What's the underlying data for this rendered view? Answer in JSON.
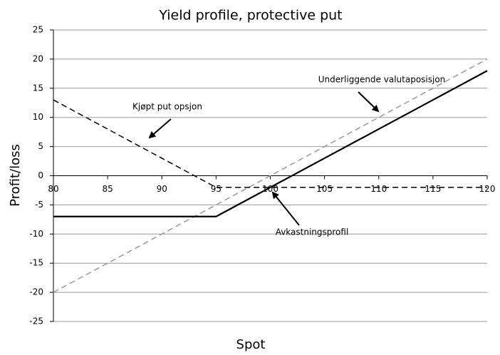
{
  "chart_data": {
    "type": "line",
    "title": "Yield profile, protective put",
    "xlabel": "Spot",
    "ylabel": "Profit/loss",
    "x": [
      80,
      85,
      90,
      95,
      100,
      105,
      110,
      115,
      120
    ],
    "series": [
      {
        "color": "#999999",
        "dash": true,
        "values": [
          -20,
          -15,
          -10,
          -5,
          0,
          5,
          10,
          15,
          20
        ]
      },
      {
        "color": "#000000",
        "dash": true,
        "values": [
          13,
          8,
          3,
          -2,
          -2,
          -2,
          -2,
          -2,
          -2
        ]
      },
      {
        "color": "#000000",
        "dash": false,
        "values": [
          -7,
          -7,
          -7,
          -7,
          -2,
          3,
          8,
          13,
          18
        ]
      }
    ],
    "xlim": [
      80,
      120
    ],
    "xticks": [
      80,
      85,
      90,
      95,
      100,
      105,
      110,
      115,
      120
    ],
    "ylim": [
      -25,
      25
    ],
    "yticks": [
      -25,
      -20,
      -15,
      -10,
      -5,
      0,
      5,
      10,
      15,
      20,
      25
    ],
    "grid": true,
    "annotations": [
      "Kjøpt put opsjon",
      "Underliggende valutaposisjon",
      "Avkastningsprofil"
    ]
  }
}
